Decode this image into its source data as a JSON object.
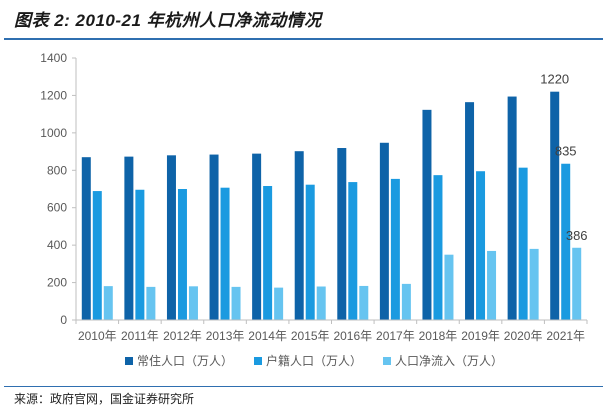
{
  "title": "图表 2:  2010-21 年杭州人口净流动情况",
  "source": "来源：政府官网，国金证券研究所",
  "colors": {
    "series": [
      "#0e63a8",
      "#1a9ae0",
      "#66c4f0"
    ],
    "axis": "#bfbfbf",
    "text": "#595959"
  },
  "chart_data": {
    "type": "bar",
    "categories": [
      "2010年",
      "2011年",
      "2012年",
      "2013年",
      "2014年",
      "2015年",
      "2016年",
      "2017年",
      "2018年",
      "2019年",
      "2020年",
      "2021年"
    ],
    "series": [
      {
        "name": "常住人口（万人）",
        "values": [
          870,
          873,
          880,
          884,
          889,
          902,
          919,
          947,
          1123,
          1164,
          1194,
          1220
        ]
      },
      {
        "name": "户籍人口（万人）",
        "values": [
          689,
          696,
          700,
          707,
          716,
          723,
          737,
          754,
          774,
          795,
          814,
          835
        ]
      },
      {
        "name": "人口净流入（万人）",
        "values": [
          181,
          177,
          180,
          177,
          173,
          179,
          182,
          193,
          349,
          369,
          380,
          386
        ]
      }
    ],
    "data_labels": [
      {
        "series": 0,
        "category": "2021年",
        "text": "1220"
      },
      {
        "series": 1,
        "category": "2021年",
        "text": "835"
      },
      {
        "series": 2,
        "category": "2021年",
        "text": "386"
      }
    ],
    "ylim": [
      0,
      1400
    ],
    "yticks": [
      "0",
      "200",
      "400",
      "600",
      "800",
      "1000",
      "1200",
      "1400"
    ],
    "xlabel": "",
    "ylabel": "",
    "grid": false,
    "legend": "bottom"
  }
}
